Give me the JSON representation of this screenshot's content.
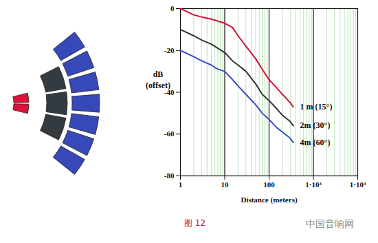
{
  "chart_data": {
    "type": "line",
    "x_label": "Distance (meters)",
    "y_label": "dB (offset)",
    "caption": "图 12",
    "watermark": "中国音响网",
    "log": "x",
    "grid": true,
    "xlim": [
      1,
      10000
    ],
    "ylim": [
      -80,
      0
    ],
    "xticks": [
      1,
      10,
      100,
      {
        "value": 1000,
        "label": "1·10³"
      },
      {
        "value": 10000,
        "label": "1·10⁴"
      }
    ],
    "yticks": [
      0,
      -20,
      -40,
      -60,
      -80
    ],
    "x": [
      1,
      2,
      3,
      5,
      7,
      10,
      15,
      20,
      30,
      50,
      70,
      100,
      150,
      200,
      300,
      350
    ],
    "series": [
      {
        "name": "1 m (15°)",
        "color": "#d0103a",
        "values": [
          0,
          -3,
          -4,
          -5,
          -6,
          -7,
          -9,
          -13,
          -18,
          -24,
          -29,
          -34,
          -38,
          -41,
          -45,
          -47
        ]
      },
      {
        "name": "2m (30°)",
        "color": "#333333",
        "values": [
          -10,
          -13,
          -15,
          -17,
          -19,
          -21,
          -25,
          -27,
          -30,
          -36,
          -41,
          -44,
          -48,
          -51,
          -54,
          -56
        ]
      },
      {
        "name": "4m (60°)",
        "color": "#3a4fc8",
        "values": [
          -20,
          -23,
          -25,
          -27,
          -29,
          -30,
          -34,
          -37,
          -41,
          -46,
          -50,
          -53,
          -57,
          -59,
          -62,
          -64
        ]
      }
    ]
  }
}
